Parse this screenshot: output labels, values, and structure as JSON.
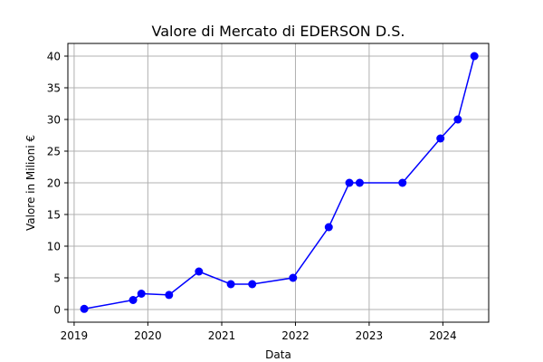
{
  "chart_data": {
    "type": "line",
    "title": "Valore di Mercato di EDERSON D.S.",
    "xlabel": "Data",
    "ylabel": "Valore in Milioni €",
    "x_type": "date",
    "xlim": [
      "2018-12-01",
      "2024-08-15"
    ],
    "ylim": [
      -2,
      42
    ],
    "grid": true,
    "line_color": "#0000ff",
    "marker": "circle",
    "x_ticks": [
      {
        "date": "2019-01-01",
        "label": "2019"
      },
      {
        "date": "2020-01-01",
        "label": "2020"
      },
      {
        "date": "2021-01-01",
        "label": "2021"
      },
      {
        "date": "2022-01-01",
        "label": "2022"
      },
      {
        "date": "2023-01-01",
        "label": "2023"
      },
      {
        "date": "2024-01-01",
        "label": "2024"
      }
    ],
    "y_ticks": [
      {
        "value": 0,
        "label": "0"
      },
      {
        "value": 5,
        "label": "5"
      },
      {
        "value": 10,
        "label": "10"
      },
      {
        "value": 15,
        "label": "15"
      },
      {
        "value": 20,
        "label": "20"
      },
      {
        "value": 25,
        "label": "25"
      },
      {
        "value": 30,
        "label": "30"
      },
      {
        "value": 35,
        "label": "35"
      },
      {
        "value": 40,
        "label": "40"
      }
    ],
    "series": [
      {
        "points": [
          {
            "x": "2019-02-20",
            "y": 0.1
          },
          {
            "x": "2019-10-20",
            "y": 1.5
          },
          {
            "x": "2019-11-30",
            "y": 2.5
          },
          {
            "x": "2020-04-15",
            "y": 2.3
          },
          {
            "x": "2020-09-10",
            "y": 6.0
          },
          {
            "x": "2021-02-15",
            "y": 4.0
          },
          {
            "x": "2021-06-01",
            "y": 4.0
          },
          {
            "x": "2021-12-20",
            "y": 5.0
          },
          {
            "x": "2022-06-15",
            "y": 13.0
          },
          {
            "x": "2022-09-25",
            "y": 20.0
          },
          {
            "x": "2022-11-15",
            "y": 20.0
          },
          {
            "x": "2023-06-15",
            "y": 20.0
          },
          {
            "x": "2023-12-20",
            "y": 27.0
          },
          {
            "x": "2024-03-15",
            "y": 30.0
          },
          {
            "x": "2024-06-05",
            "y": 40.0
          }
        ]
      }
    ]
  }
}
